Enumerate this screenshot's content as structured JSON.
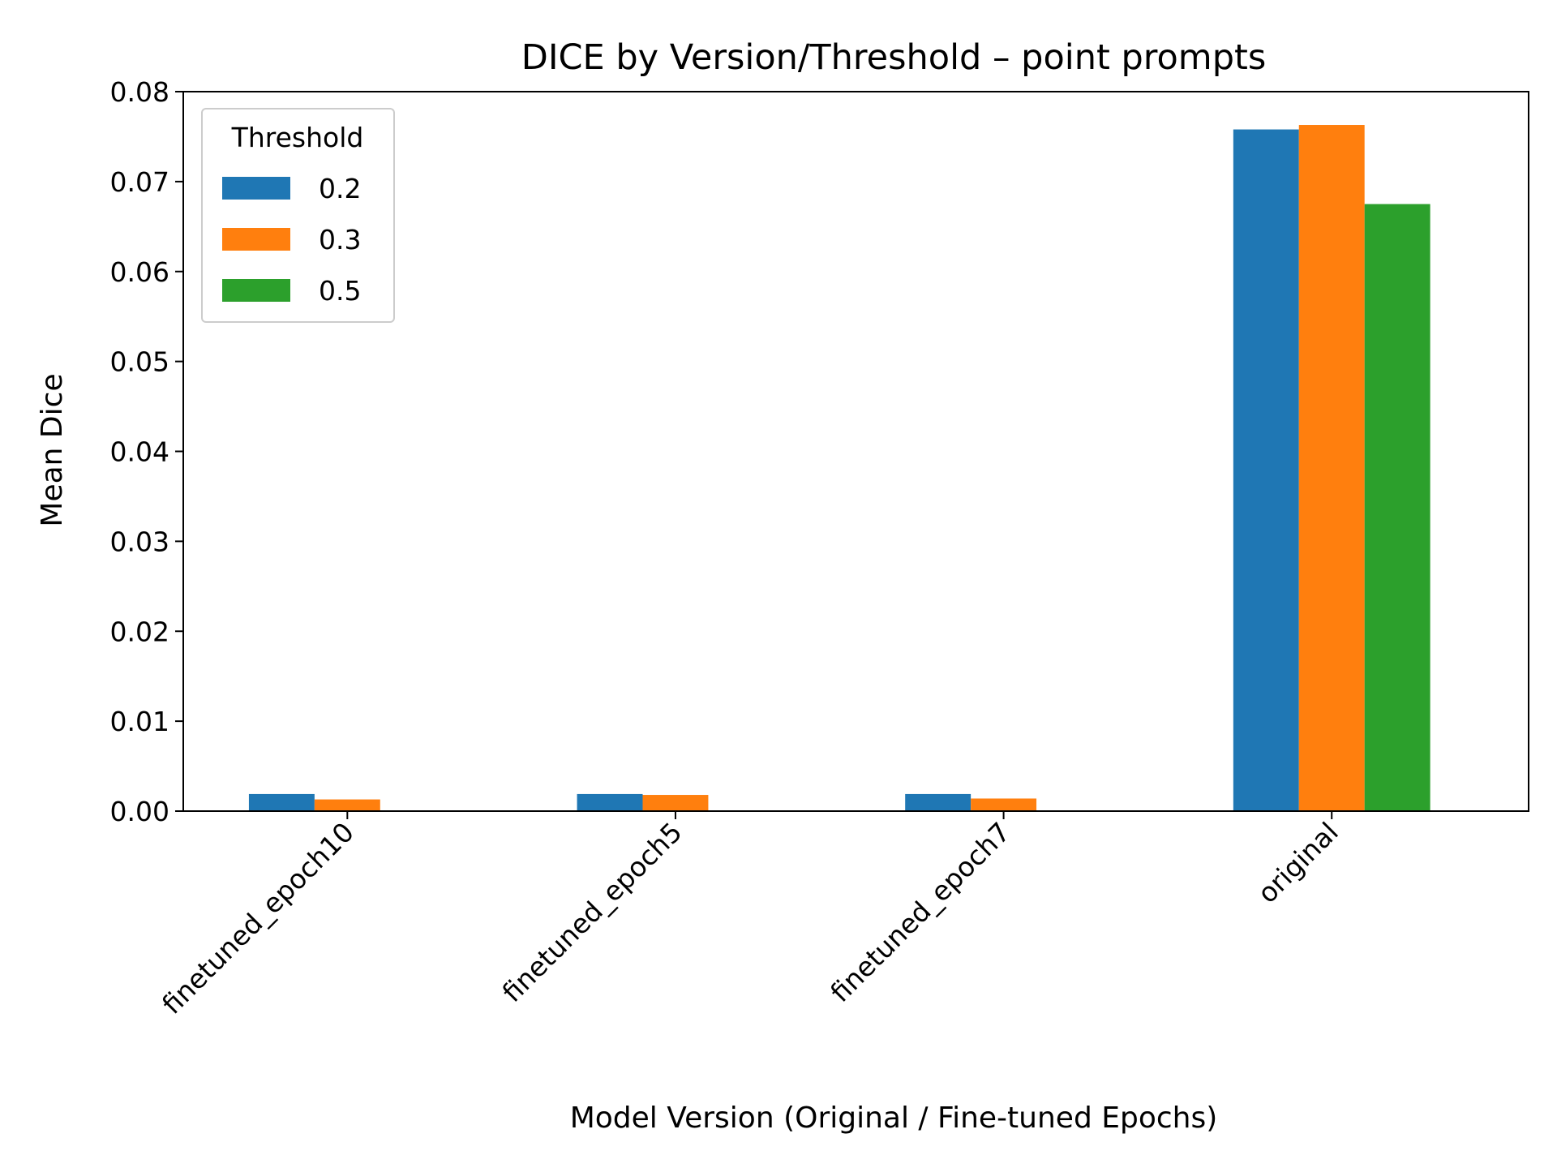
{
  "chart_data": {
    "type": "bar",
    "title": "DICE by Version/Threshold – point prompts",
    "xlabel": "Model Version (Original / Fine-tuned Epochs)",
    "ylabel": "Mean Dice",
    "categories": [
      "finetuned_epoch10",
      "finetuned_epoch5",
      "finetuned_epoch7",
      "original"
    ],
    "series": [
      {
        "name": "0.2",
        "color": "#1f77b4",
        "values": [
          0.0019,
          0.0019,
          0.0019,
          0.0758
        ]
      },
      {
        "name": "0.3",
        "color": "#ff7f0e",
        "values": [
          0.0013,
          0.0018,
          0.0014,
          0.0763
        ]
      },
      {
        "name": "0.5",
        "color": "#2ca02c",
        "values": [
          0.0,
          0.0,
          0.0,
          0.0675
        ]
      }
    ],
    "ylim": [
      0,
      0.08
    ],
    "yticks": [
      "0.00",
      "0.01",
      "0.02",
      "0.03",
      "0.04",
      "0.05",
      "0.06",
      "0.07",
      "0.08"
    ],
    "legend": {
      "title": "Threshold",
      "position": "upper-left"
    },
    "grid": false
  }
}
